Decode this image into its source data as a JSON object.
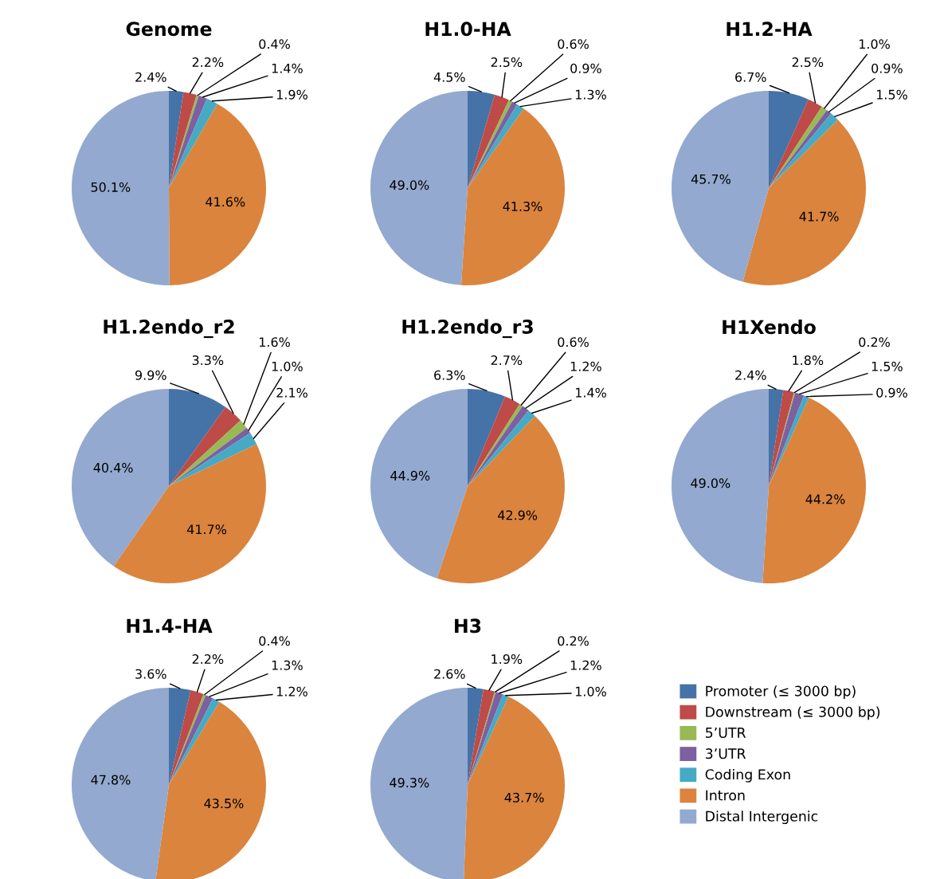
{
  "chart_data": [
    {
      "type": "pie",
      "title": "Genome",
      "categories": [
        "Promoter (≤ 3000 bp)",
        "Downstream (≤ 3000 bp)",
        "5’UTR",
        "3’UTR",
        "Coding Exon",
        "Intron",
        "Distal Intergenic"
      ],
      "values": [
        2.4,
        2.2,
        0.4,
        1.4,
        1.9,
        41.6,
        50.1
      ],
      "value_labels": [
        "2.4%",
        "2.2%",
        "0.4%",
        "1.4%",
        "1.9%",
        "41.6%",
        "50.1%"
      ],
      "colors": [
        "#4573a7",
        "#be4b48",
        "#98b954",
        "#7d60a0",
        "#46aac5",
        "#db843d",
        "#93a9cf"
      ],
      "legend": "bottom right"
    },
    {
      "type": "pie",
      "title": "H1.0-HA",
      "categories": [
        null,
        null,
        null,
        null,
        null,
        null,
        null
      ],
      "values": [
        4.5,
        2.5,
        0.6,
        0.9,
        1.3,
        41.3,
        49.0
      ],
      "value_labels": [
        "4.5%",
        "2.5%",
        "0.6%",
        "0.9%",
        "1.3%",
        "41.3%",
        "49.0%"
      ],
      "colors": [
        "#4573a7",
        "#be4b48",
        "#98b954",
        "#7d60a0",
        "#46aac5",
        "#db843d",
        "#93a9cf"
      ]
    },
    {
      "type": "pie",
      "title": "H1.2-HA",
      "categories": [
        null,
        null,
        null,
        null,
        null,
        null,
        null
      ],
      "values": [
        6.7,
        2.5,
        1.0,
        0.9,
        1.5,
        41.7,
        45.7
      ],
      "value_labels": [
        "6.7%",
        "2.5%",
        "1.0%",
        "0.9%",
        "1.5%",
        "41.7%",
        "45.7%"
      ],
      "colors": [
        "#4573a7",
        "#be4b48",
        "#98b954",
        "#7d60a0",
        "#46aac5",
        "#db843d",
        "#93a9cf"
      ]
    },
    {
      "type": "pie",
      "title": "H1.2endo_r2",
      "categories": [
        null,
        null,
        null,
        null,
        null,
        null,
        null
      ],
      "values": [
        9.9,
        3.3,
        1.6,
        1.0,
        2.1,
        41.7,
        40.4
      ],
      "value_labels": [
        "9.9%",
        "3.3%",
        "1.6%",
        "1.0%",
        "2.1%",
        "41.7%",
        "40.4%"
      ],
      "colors": [
        "#4573a7",
        "#be4b48",
        "#98b954",
        "#7d60a0",
        "#46aac5",
        "#db843d",
        "#93a9cf"
      ]
    },
    {
      "type": "pie",
      "title": "H1.2endo_r3",
      "categories": [
        null,
        null,
        null,
        null,
        null,
        null,
        null
      ],
      "values": [
        6.3,
        2.7,
        0.6,
        1.2,
        1.4,
        42.9,
        44.9
      ],
      "value_labels": [
        "6.3%",
        "2.7%",
        "0.6%",
        "1.2%",
        "1.4%",
        "42.9%",
        "44.9%"
      ],
      "colors": [
        "#4573a7",
        "#be4b48",
        "#98b954",
        "#7d60a0",
        "#46aac5",
        "#db843d",
        "#93a9cf"
      ]
    },
    {
      "type": "pie",
      "title": "H1Xendo",
      "categories": [
        null,
        null,
        null,
        null,
        null,
        null,
        null
      ],
      "values": [
        2.4,
        1.8,
        0.2,
        1.5,
        0.9,
        44.2,
        49.0
      ],
      "value_labels": [
        "2.4%",
        "1.8%",
        "0.2%",
        "1.5%",
        "0.9%",
        "44.2%",
        "49.0%"
      ],
      "colors": [
        "#4573a7",
        "#be4b48",
        "#98b954",
        "#7d60a0",
        "#46aac5",
        "#db843d",
        "#93a9cf"
      ]
    },
    {
      "type": "pie",
      "title": "H1.4-HA",
      "categories": [
        null,
        null,
        null,
        null,
        null,
        null,
        null
      ],
      "values": [
        3.6,
        2.2,
        0.4,
        1.3,
        1.2,
        43.5,
        47.8
      ],
      "value_labels": [
        "3.6%",
        "2.2%",
        "0.4%",
        "1.3%",
        "1.2%",
        "43.5%",
        "47.8%"
      ],
      "colors": [
        "#4573a7",
        "#be4b48",
        "#98b954",
        "#7d60a0",
        "#46aac5",
        "#db843d",
        "#93a9cf"
      ]
    },
    {
      "type": "pie",
      "title": "H3",
      "categories": [
        null,
        null,
        null,
        null,
        null,
        null,
        null
      ],
      "values": [
        2.6,
        1.9,
        0.2,
        1.2,
        1.0,
        43.7,
        49.3
      ],
      "value_labels": [
        "2.6%",
        "1.9%",
        "0.2%",
        "1.2%",
        "1.0%",
        "43.7%",
        "49.3%"
      ],
      "colors": [
        "#4573a7",
        "#be4b48",
        "#98b954",
        "#7d60a0",
        "#46aac5",
        "#db843d",
        "#93a9cf"
      ]
    }
  ]
}
